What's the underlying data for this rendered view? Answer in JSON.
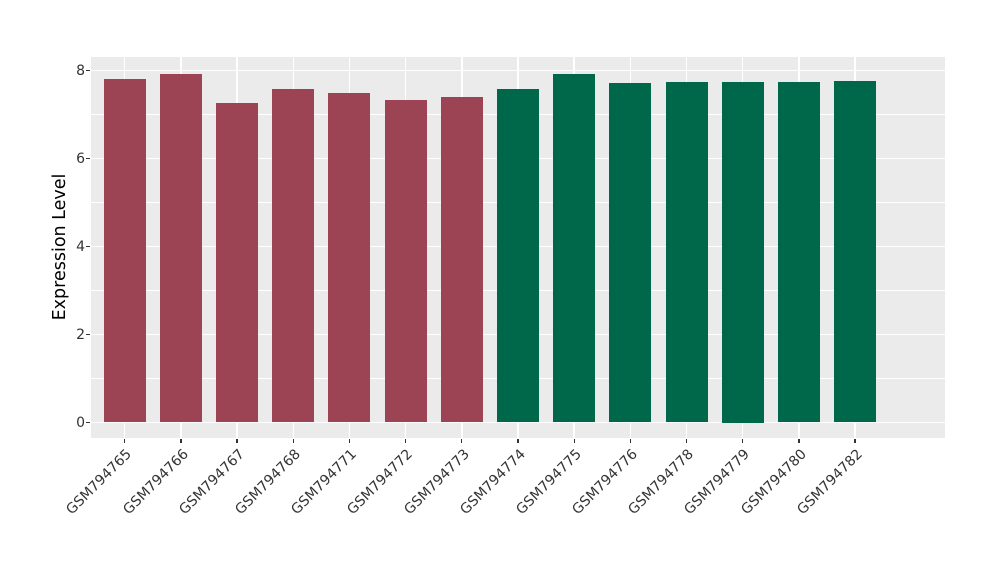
{
  "chart_data": {
    "type": "bar",
    "title": "",
    "xlabel": "",
    "ylabel": "Expression Level",
    "ylim": [
      0,
      8
    ],
    "yticks": [
      0,
      2,
      4,
      6,
      8
    ],
    "yticks_minor": [
      1,
      3,
      5,
      7
    ],
    "grid": "major-and-minor-on",
    "legend_position": "none",
    "categories": [
      "GSM794765",
      "GSM794766",
      "GSM794767",
      "GSM794768",
      "GSM794771",
      "GSM794772",
      "GSM794773",
      "GSM794774",
      "GSM794775",
      "GSM794776",
      "GSM794778",
      "GSM794779",
      "GSM794780",
      "GSM794782"
    ],
    "values": [
      7.8,
      7.93,
      7.27,
      7.58,
      7.49,
      7.32,
      7.4,
      7.59,
      7.92,
      7.72,
      7.74,
      7.75,
      7.73,
      7.77
    ],
    "bar_colors": [
      "#9C4453",
      "#9C4453",
      "#9C4453",
      "#9C4453",
      "#9C4453",
      "#9C4453",
      "#9C4453",
      "#00684A",
      "#00684A",
      "#00684A",
      "#00684A",
      "#00684A",
      "#00684A",
      "#00684A"
    ],
    "group_colors": {
      "left_group": "#9C4453",
      "right_group": "#00684A"
    },
    "style_colors": {
      "panel_bg": "#EBEBEB",
      "gridline": "#FFFFFF",
      "tick_text": "#333333",
      "axis_title": "#000000",
      "figure_bg": "#FFFFFF"
    }
  }
}
